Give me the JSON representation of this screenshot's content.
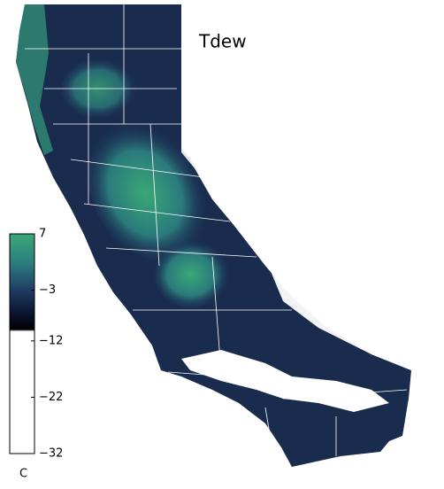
{
  "title": "Tdew",
  "colorbar": {
    "label": "C",
    "ylim": [
      -32,
      7
    ],
    "yticks": [
      7,
      {
        "value": -3,
        "label": "−3"
      },
      {
        "value": -12,
        "label": "−12"
      },
      {
        "value": -22,
        "label": "−22"
      },
      {
        "value": -32,
        "label": "−32"
      }
    ],
    "stops": [
      {
        "value": 7,
        "color": "#3aa877"
      },
      {
        "value": 2,
        "color": "#2d7f7f"
      },
      {
        "value": -3,
        "color": "#1f3d63"
      },
      {
        "value": -7,
        "color": "#0b1530"
      },
      {
        "value": -10,
        "color": "#000000"
      },
      {
        "value": -10.3,
        "color": "#ffffff"
      },
      {
        "value": -32,
        "color": "#ffffff"
      }
    ]
  }
}
